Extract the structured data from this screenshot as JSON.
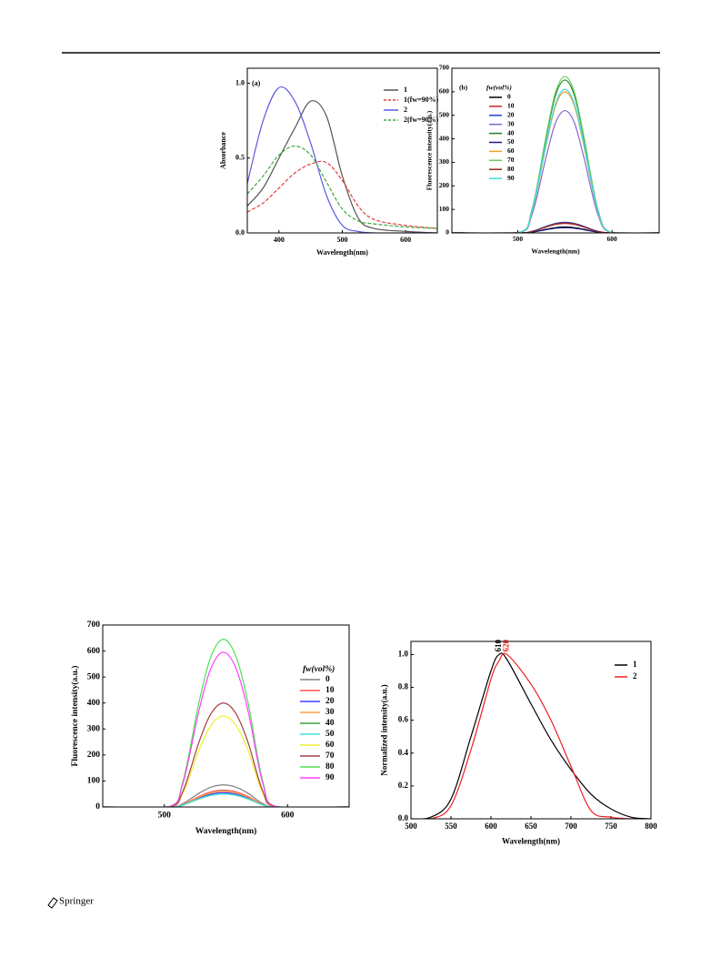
{
  "chart_data": [
    {
      "type": "line",
      "panel_label": "(a)",
      "x_label": "Wavelength(nm)",
      "y_label": "Absorbance",
      "x": [
        350,
        375,
        400,
        425,
        450,
        475,
        500,
        525,
        550,
        600,
        650
      ],
      "series": [
        {
          "name": "1",
          "color": "#555555",
          "dash": false,
          "values": [
            0.18,
            0.3,
            0.5,
            0.7,
            0.88,
            0.78,
            0.38,
            0.1,
            0.03,
            0.01,
            0.0
          ]
        },
        {
          "name": "1(fw=90%)",
          "color": "#e83a3a",
          "dash": true,
          "values": [
            0.14,
            0.2,
            0.3,
            0.4,
            0.46,
            0.47,
            0.35,
            0.18,
            0.09,
            0.05,
            0.03
          ]
        },
        {
          "name": "2",
          "color": "#5a5ae0",
          "dash": false,
          "values": [
            0.33,
            0.75,
            0.97,
            0.88,
            0.6,
            0.25,
            0.05,
            0.01,
            0.0,
            0.0,
            0.0
          ]
        },
        {
          "name": "2(fw=90%)",
          "color": "#3aa83a",
          "dash": true,
          "values": [
            0.26,
            0.38,
            0.52,
            0.58,
            0.52,
            0.34,
            0.16,
            0.08,
            0.06,
            0.04,
            0.03
          ]
        }
      ],
      "xlim": [
        350,
        650
      ],
      "ylim": [
        0,
        1.1
      ],
      "xticks": [
        400,
        500,
        600
      ],
      "yticks": [
        {
          "value": 0,
          "label": "0.0"
        },
        {
          "value": 0.5,
          "label": "0.5"
        },
        {
          "value": 1,
          "label": "1.0"
        }
      ],
      "legend": "upper right"
    },
    {
      "type": "line",
      "panel_label": "(b)",
      "x_label": "Wavelength(nm)",
      "y_label": "Fluorescence intensity(a.u.)",
      "legend_title": "fw(vol%)",
      "x": [
        430,
        500,
        515,
        530,
        540,
        550,
        560,
        570,
        585,
        600,
        650
      ],
      "series": [
        {
          "name": "0",
          "color": "#000000",
          "dash": false,
          "values": [
            0,
            0,
            3.8,
            15.5,
            22.5,
            25,
            22.5,
            15.5,
            3.8,
            0,
            0
          ]
        },
        {
          "name": "10",
          "color": "#d62020",
          "dash": false,
          "values": [
            0,
            0,
            6,
            24.8,
            36,
            40,
            36,
            24.8,
            6,
            0,
            0
          ]
        },
        {
          "name": "20",
          "color": "#2040d0",
          "dash": false,
          "values": [
            0,
            0,
            6.8,
            27.9,
            40.5,
            45,
            40.5,
            27.9,
            6.8,
            0,
            0
          ]
        },
        {
          "name": "30",
          "color": "#8866cc",
          "dash": false,
          "values": [
            0,
            0,
            78,
            322.4,
            468,
            520,
            468,
            322.4,
            78,
            0,
            0
          ]
        },
        {
          "name": "40",
          "color": "#208020",
          "dash": false,
          "values": [
            0,
            0,
            97.5,
            403,
            585,
            650,
            585,
            403,
            97.5,
            0,
            0
          ]
        },
        {
          "name": "50",
          "color": "#1a1a80",
          "dash": false,
          "values": [
            0,
            0,
            3.3,
            13.6,
            19.8,
            22,
            19.8,
            13.6,
            3.3,
            0,
            0
          ]
        },
        {
          "name": "60",
          "color": "#f0a030",
          "dash": false,
          "values": [
            0,
            0,
            90,
            372,
            540,
            600,
            540,
            372,
            90,
            0,
            0
          ]
        },
        {
          "name": "70",
          "color": "#60d060",
          "dash": false,
          "values": [
            0,
            0,
            99.8,
            412.3,
            598.5,
            665,
            598.5,
            412.3,
            99.8,
            0,
            0
          ]
        },
        {
          "name": "80",
          "color": "#8a2a2a",
          "dash": false,
          "values": [
            0,
            0,
            6.3,
            26,
            37.8,
            42,
            37.8,
            26,
            6.3,
            0,
            0
          ]
        },
        {
          "name": "90",
          "color": "#40d8f0",
          "dash": false,
          "values": [
            0,
            0,
            91.5,
            378.2,
            549,
            610,
            549,
            378.2,
            91.5,
            0,
            0
          ]
        }
      ],
      "xlim": [
        430,
        650
      ],
      "ylim": [
        0,
        700
      ],
      "xticks": [
        500,
        600
      ],
      "yticks": [
        0,
        100,
        200,
        300,
        400,
        500,
        600,
        700
      ],
      "legend": "right"
    },
    {
      "type": "line",
      "x_label": "Wavelength(nm)",
      "y_label": "Fluorescence intensity(a.u.)",
      "legend_title": "fw(vol%)",
      "x": [
        450,
        503,
        515,
        528,
        538,
        548,
        558,
        568,
        580,
        592,
        650
      ],
      "series": [
        {
          "name": "0",
          "color": "#808080",
          "dash": false,
          "values": [
            0,
            0,
            12.8,
            52.7,
            76.5,
            85,
            76.5,
            52.7,
            12.8,
            0,
            0
          ]
        },
        {
          "name": "10",
          "color": "#ff5050",
          "dash": false,
          "values": [
            0,
            0,
            9.8,
            40.3,
            58.5,
            65,
            58.5,
            40.3,
            9.8,
            0,
            0
          ]
        },
        {
          "name": "20",
          "color": "#4040ff",
          "dash": false,
          "values": [
            0,
            0,
            8.3,
            34.1,
            49.5,
            55,
            49.5,
            34.1,
            8.3,
            0,
            0
          ]
        },
        {
          "name": "30",
          "color": "#ffa040",
          "dash": false,
          "values": [
            0,
            0,
            9,
            37.2,
            54,
            60,
            54,
            37.2,
            9,
            0,
            0
          ]
        },
        {
          "name": "40",
          "color": "#40a040",
          "dash": false,
          "values": [
            0,
            0,
            7.5,
            31,
            45,
            50,
            45,
            31,
            7.5,
            0,
            0
          ]
        },
        {
          "name": "50",
          "color": "#40e0e0",
          "dash": false,
          "values": [
            0,
            0,
            7.5,
            31,
            45,
            50,
            45,
            31,
            7.5,
            0,
            0
          ]
        },
        {
          "name": "60",
          "color": "#f0f030",
          "dash": false,
          "values": [
            0,
            0,
            52.5,
            217,
            315,
            350,
            315,
            217,
            52.5,
            0,
            0
          ]
        },
        {
          "name": "70",
          "color": "#a04040",
          "dash": false,
          "values": [
            0,
            0,
            60,
            248,
            360,
            400,
            360,
            248,
            60,
            0,
            0
          ]
        },
        {
          "name": "80",
          "color": "#50e050",
          "dash": false,
          "values": [
            0,
            0,
            96.8,
            399.9,
            580.5,
            645,
            580.5,
            399.9,
            96.8,
            0,
            0
          ]
        },
        {
          "name": "90",
          "color": "#ff40ff",
          "dash": false,
          "values": [
            0,
            0,
            89.3,
            368.9,
            535.5,
            595,
            535.5,
            368.9,
            89.3,
            0,
            0
          ]
        }
      ],
      "xlim": [
        450,
        650
      ],
      "ylim": [
        0,
        700
      ],
      "xticks": [
        500,
        600
      ],
      "yticks": [
        0,
        100,
        200,
        300,
        400,
        500,
        600,
        700
      ],
      "legend": "right"
    },
    {
      "type": "line",
      "x_label": "Wavelength(nm)",
      "y_label": "Normalized intensity(a.u.)",
      "x": [
        500,
        525,
        550,
        575,
        600,
        610,
        620,
        650,
        675,
        700,
        725,
        750,
        775,
        800
      ],
      "series": [
        {
          "name": "1",
          "color": "#000000",
          "dash": false,
          "values": [
            0,
            0.01,
            0.12,
            0.5,
            0.9,
            1.0,
            0.97,
            0.7,
            0.48,
            0.3,
            0.15,
            0.06,
            0.01,
            0
          ]
        },
        {
          "name": "2",
          "color": "#ee2020",
          "dash": false,
          "values": [
            0,
            0,
            0.08,
            0.42,
            0.85,
            0.96,
            1.0,
            0.82,
            0.6,
            0.32,
            0.05,
            0.01,
            0,
            0
          ]
        }
      ],
      "annotations": [
        {
          "text": "610",
          "x": 610,
          "y": 1.0,
          "color": "#000000"
        },
        {
          "text": "620",
          "x": 620,
          "y": 1.0,
          "color": "#ee2020"
        }
      ],
      "xlim": [
        500,
        800
      ],
      "ylim": [
        0,
        1.08
      ],
      "xticks": [
        500,
        550,
        600,
        650,
        700,
        750,
        800
      ],
      "yticks": [
        {
          "value": 0,
          "label": "0.0"
        },
        {
          "value": 0.2,
          "label": "0.2"
        },
        {
          "value": 0.4,
          "label": "0.4"
        },
        {
          "value": 0.6,
          "label": "0.6"
        },
        {
          "value": 0.8,
          "label": "0.8"
        },
        {
          "value": 1,
          "label": "1.0"
        }
      ],
      "legend": "upper right"
    }
  ],
  "footer": {
    "publisher": "Springer"
  }
}
